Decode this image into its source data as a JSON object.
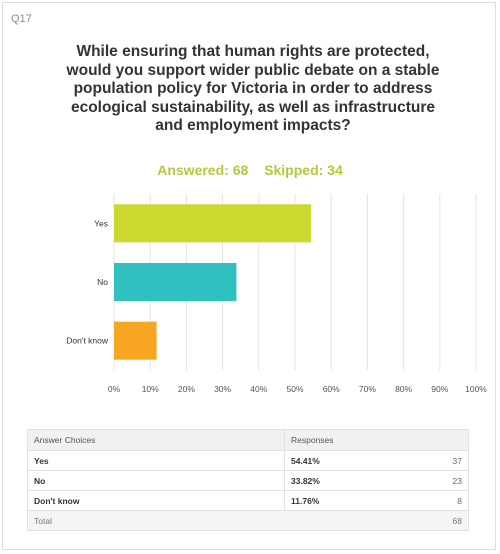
{
  "question": {
    "number": "Q17",
    "title": "While ensuring that human rights are protected, would you support wider public debate on a stable population policy for Victoria in order to address ecological sustainability, as well as infrastructure and employment impacts?",
    "answered": "Answered: 68",
    "skipped": "Skipped: 34"
  },
  "chart_data": {
    "type": "bar",
    "orientation": "horizontal",
    "categories": [
      "Yes",
      "No",
      "Don't know"
    ],
    "values": [
      54.41,
      33.82,
      11.76
    ],
    "colors": [
      "#cbd82f",
      "#31c0c0",
      "#f6a623"
    ],
    "xlim": [
      0,
      100
    ],
    "xticks": [
      "0%",
      "10%",
      "20%",
      "30%",
      "40%",
      "50%",
      "60%",
      "70%",
      "80%",
      "90%",
      "100%"
    ],
    "grid": true
  },
  "table": {
    "headers": [
      "Answer Choices",
      "Responses"
    ],
    "rows": [
      {
        "choice": "Yes",
        "percent": "54.41%",
        "count": "37"
      },
      {
        "choice": "No",
        "percent": "33.82%",
        "count": "23"
      },
      {
        "choice": "Don't know",
        "percent": "11.76%",
        "count": "8"
      }
    ],
    "total_label": "Total",
    "total_count": "68"
  }
}
